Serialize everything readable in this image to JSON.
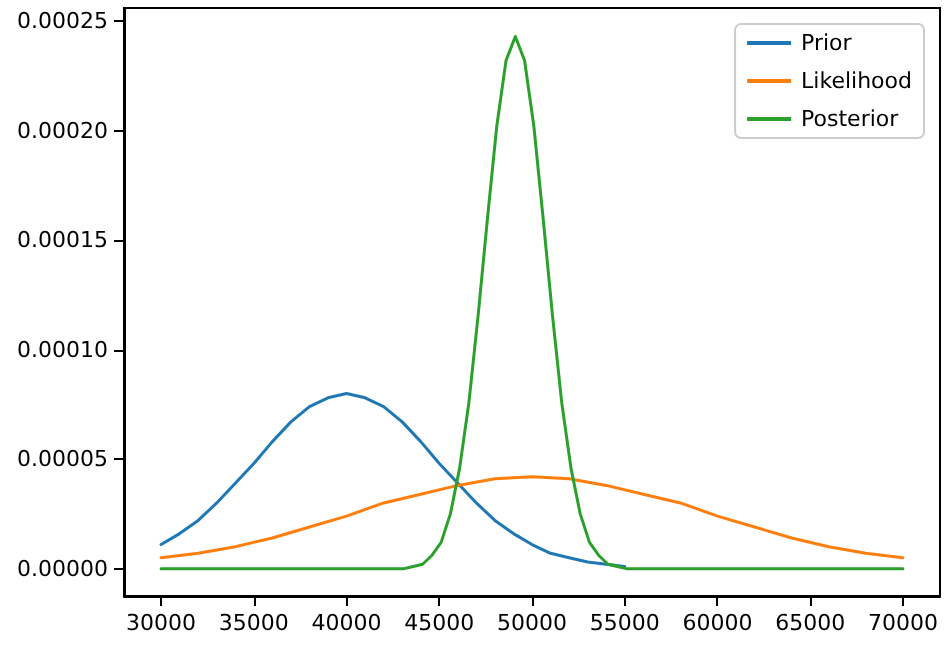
{
  "chart_data": {
    "type": "line",
    "xlim": [
      28000,
      72000
    ],
    "ylim": [
      -1.25e-05,
      0.000256
    ],
    "xticks": [
      30000,
      35000,
      40000,
      45000,
      50000,
      55000,
      60000,
      65000,
      70000
    ],
    "yticks": [
      {
        "value": 0,
        "label": "0.00000"
      },
      {
        "value": 5e-05,
        "label": "0.00005"
      },
      {
        "value": 0.0001,
        "label": "0.00010"
      },
      {
        "value": 0.00015,
        "label": "0.00015"
      },
      {
        "value": 0.0002,
        "label": "0.00020"
      },
      {
        "value": 0.00025,
        "label": "0.00025"
      }
    ],
    "grid": false,
    "legend": "top right",
    "marker": "none",
    "line_style": "solid",
    "series": [
      {
        "name": "Prior",
        "color": "#1f77b4",
        "x": [
          30000,
          31000,
          32000,
          33000,
          34000,
          35000,
          36000,
          37000,
          38000,
          39000,
          40000,
          41000,
          42000,
          43000,
          44000,
          45000,
          46000,
          47000,
          48000,
          49000,
          50000,
          51000,
          52000,
          53000,
          54000,
          55000
        ],
        "values": [
          1.1e-05,
          1.6e-05,
          2.2e-05,
          3e-05,
          3.9e-05,
          4.8e-05,
          5.8e-05,
          6.7e-05,
          7.4e-05,
          7.8e-05,
          8e-05,
          7.8e-05,
          7.4e-05,
          6.7e-05,
          5.8e-05,
          4.8e-05,
          3.9e-05,
          3e-05,
          2.2e-05,
          1.6e-05,
          1.1e-05,
          7e-06,
          5e-06,
          3e-06,
          2e-06,
          1e-06
        ]
      },
      {
        "name": "Likelihood",
        "color": "#ff7f0e",
        "x": [
          30000,
          32000,
          34000,
          36000,
          38000,
          40000,
          42000,
          44000,
          46000,
          48000,
          50000,
          52000,
          54000,
          56000,
          58000,
          60000,
          62000,
          64000,
          66000,
          68000,
          70000
        ],
        "values": [
          5e-06,
          7e-06,
          1e-05,
          1.4e-05,
          1.9e-05,
          2.4e-05,
          3e-05,
          3.4e-05,
          3.8e-05,
          4.1e-05,
          4.2e-05,
          4.1e-05,
          3.8e-05,
          3.4e-05,
          3e-05,
          2.4e-05,
          1.9e-05,
          1.4e-05,
          1e-05,
          7e-06,
          5e-06
        ]
      },
      {
        "name": "Posterior",
        "color": "#2ca02c",
        "x": [
          30000,
          35000,
          40000,
          42000,
          43100,
          43600,
          44100,
          44600,
          45100,
          45600,
          46100,
          46600,
          47100,
          47600,
          48100,
          48600,
          49100,
          49600,
          50100,
          50600,
          51100,
          51600,
          52100,
          52600,
          53100,
          53600,
          54100,
          54600,
          55100,
          60000,
          65000,
          70000
        ],
        "values": [
          0,
          0,
          0,
          0,
          0,
          1e-06,
          2e-06,
          6e-06,
          1.2e-05,
          2.5e-05,
          4.6e-05,
          7.6e-05,
          0.000116,
          0.00016,
          0.000202,
          0.000232,
          0.000243,
          0.000232,
          0.000202,
          0.00016,
          0.000116,
          7.6e-05,
          4.6e-05,
          2.5e-05,
          1.2e-05,
          6e-06,
          2e-06,
          1e-06,
          0,
          0,
          0,
          0
        ]
      }
    ]
  }
}
